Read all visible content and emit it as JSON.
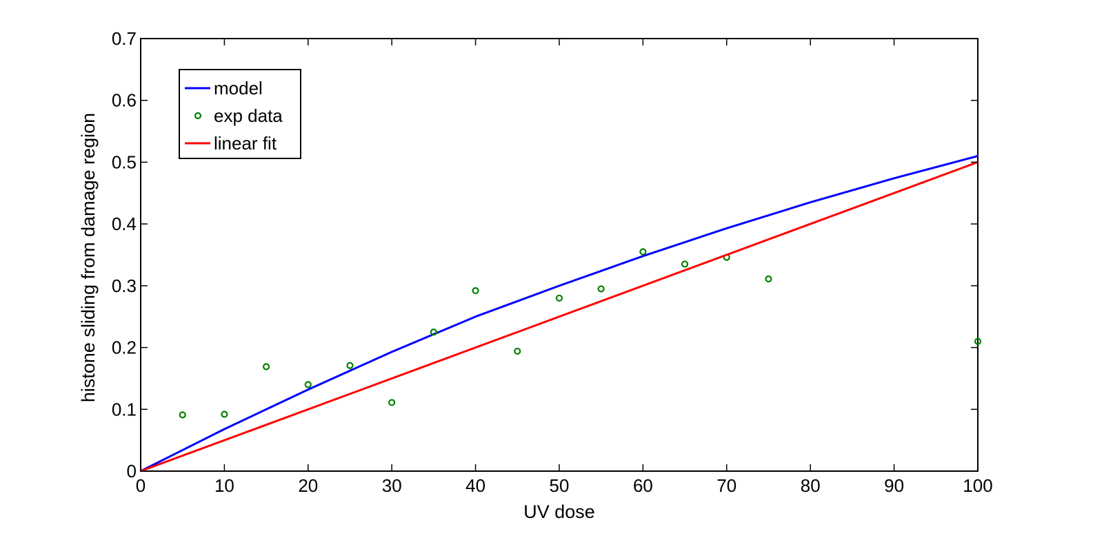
{
  "chart_data": {
    "type": "line",
    "xlabel": "UV dose",
    "ylabel": "histone sliding from damage region",
    "xlim": [
      0,
      100
    ],
    "ylim": [
      0,
      0.7
    ],
    "xticks": [
      "0",
      "10",
      "20",
      "30",
      "40",
      "50",
      "60",
      "70",
      "80",
      "90",
      "100"
    ],
    "yticks": [
      "0",
      "0.1",
      "0.2",
      "0.3",
      "0.4",
      "0.5",
      "0.6",
      "0.7"
    ],
    "grid": false,
    "legend_position": "top-left",
    "series": [
      {
        "name": "model",
        "style": "line",
        "color": "#0000ff",
        "x": [
          0,
          10,
          20,
          30,
          40,
          50,
          60,
          70,
          80,
          90,
          100
        ],
        "y": [
          0,
          0.068,
          0.132,
          0.193,
          0.25,
          0.3,
          0.348,
          0.393,
          0.435,
          0.474,
          0.51
        ]
      },
      {
        "name": "exp data",
        "style": "markers",
        "color": "#008000",
        "x": [
          5,
          10,
          15,
          20,
          25,
          30,
          35,
          40,
          45,
          50,
          55,
          60,
          65,
          70,
          75,
          100
        ],
        "y": [
          0.091,
          0.092,
          0.169,
          0.14,
          0.171,
          0.111,
          0.225,
          0.292,
          0.194,
          0.28,
          0.295,
          0.355,
          0.335,
          0.346,
          0.311,
          0.21
        ]
      },
      {
        "name": "linear fit",
        "style": "line",
        "color": "#ff0000",
        "x": [
          0,
          100
        ],
        "y": [
          0,
          0.5
        ]
      }
    ]
  }
}
